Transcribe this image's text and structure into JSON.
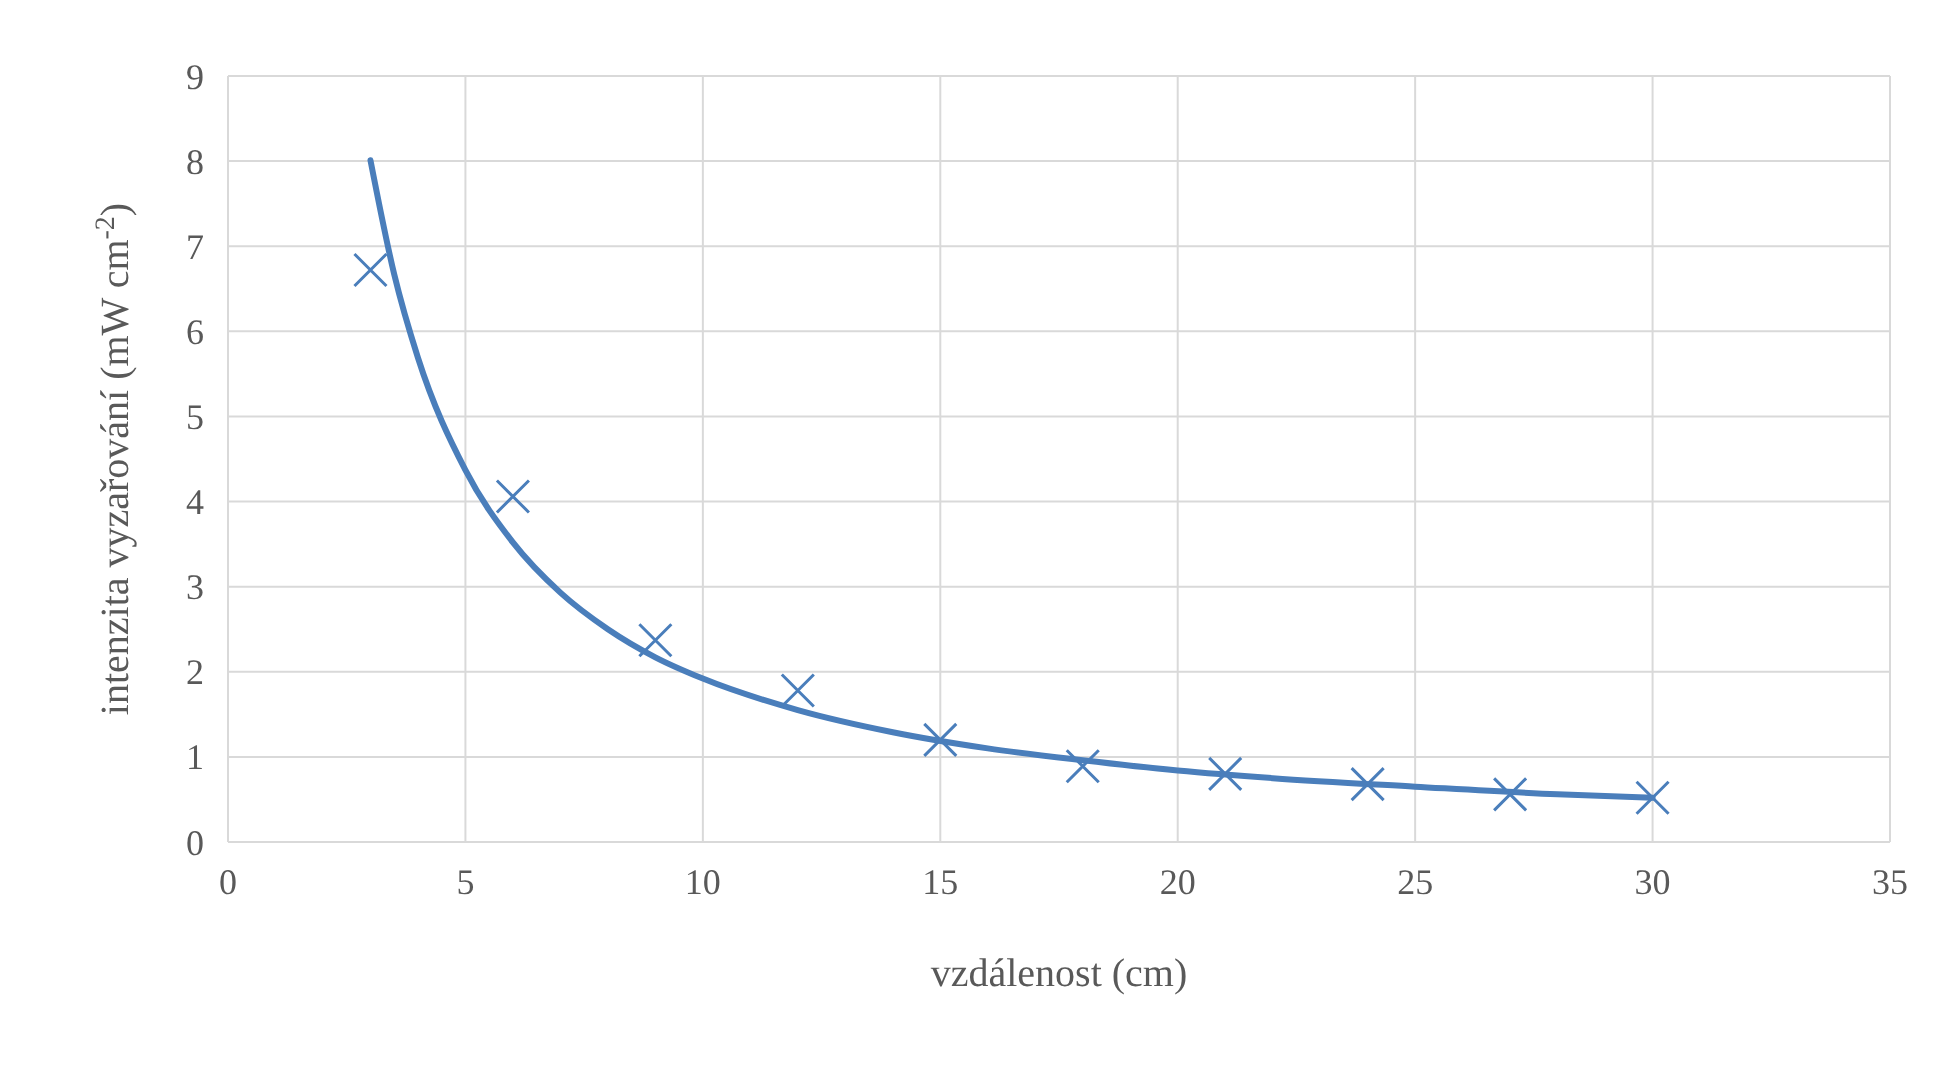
{
  "chart_data": {
    "type": "scatter",
    "xlabel": "vzdálenost (cm)",
    "ylabel": "intenzita vyzařování (mW cm$^{-2}$)",
    "xlim": [
      0,
      35
    ],
    "xticks": [
      0,
      5,
      10,
      15,
      20,
      25,
      30,
      35
    ],
    "ylim": [
      0,
      9
    ],
    "yticks": [
      0,
      1,
      2,
      3,
      4,
      5,
      6,
      7,
      8,
      9
    ],
    "grid": true,
    "series": [
      {
        "color": "#4a7ebb",
        "marker": "cross",
        "x": [
          3,
          6,
          9,
          12,
          15,
          18,
          21,
          24,
          27,
          30
        ],
        "values": [
          6.72,
          4.06,
          2.37,
          1.78,
          1.2,
          0.89,
          0.8,
          0.68,
          0.56,
          0.52
        ]
      },
      {
        "type": "line",
        "color": "#4a7ebb",
        "marker": "none",
        "line_style": "solid",
        "x": [
          3,
          3.5,
          4,
          5,
          6,
          7,
          8,
          9,
          10,
          12,
          14,
          16,
          18,
          20,
          22,
          25,
          28,
          30
        ],
        "values": [
          8.01,
          6.67,
          5.69,
          4.37,
          3.52,
          2.93,
          2.5,
          2.17,
          1.92,
          1.55,
          1.29,
          1.1,
          0.96,
          0.84,
          0.75,
          0.65,
          0.56,
          0.52
        ]
      }
    ]
  }
}
